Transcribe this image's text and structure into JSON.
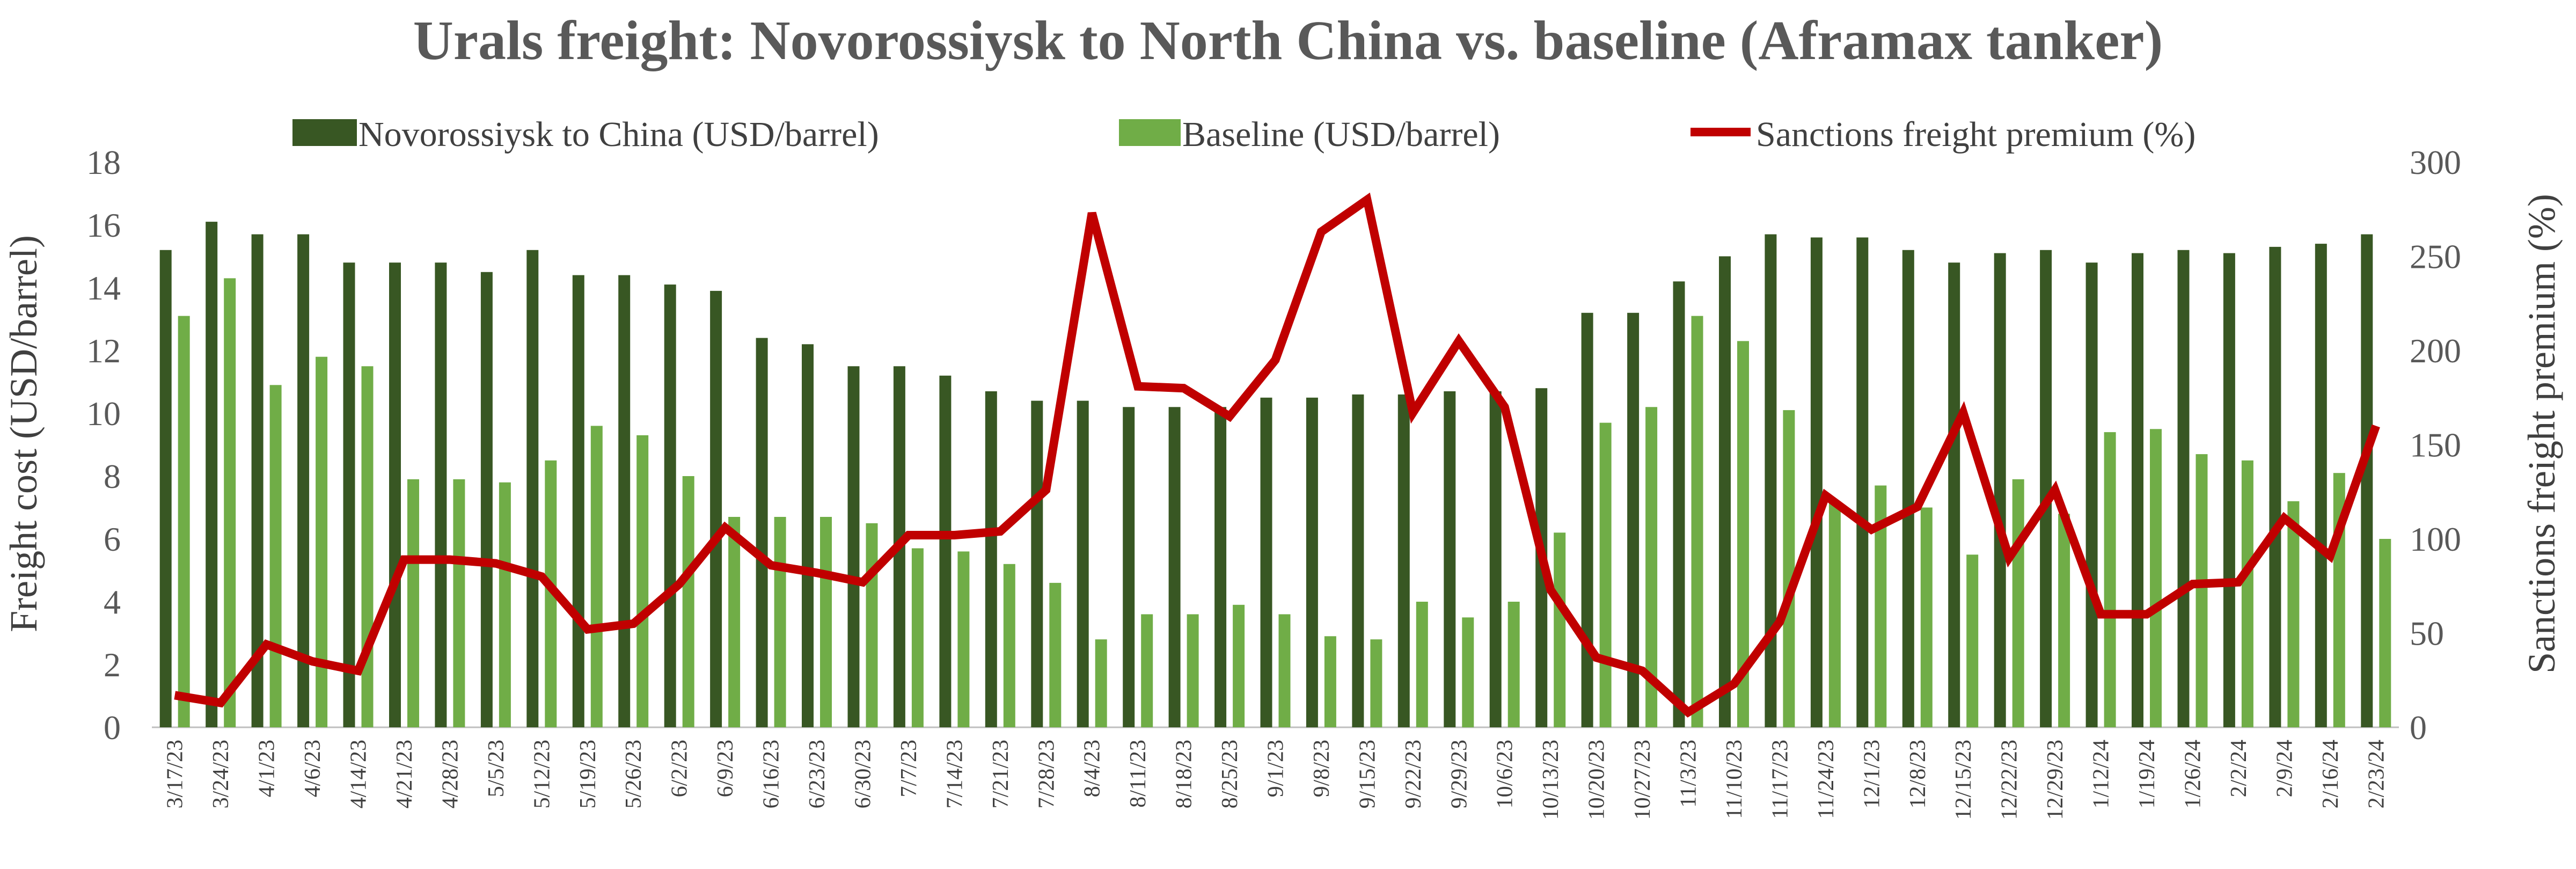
{
  "chart_data": {
    "type": "bar",
    "title": "Urals freight: Novorossiysk to North China vs. baseline (Aframax tanker)",
    "ylabel": "Freight cost (USD/barrel)",
    "y2label": "Sanctions freight premium (%)",
    "ylim": [
      0,
      18
    ],
    "yticks": [
      "0",
      "2",
      "4",
      "6",
      "8",
      "10",
      "12",
      "14",
      "16",
      "18"
    ],
    "y2lim": [
      0,
      300
    ],
    "y2ticks": [
      "0",
      "50",
      "100",
      "150",
      "200",
      "250",
      "300"
    ],
    "grid": false,
    "legend_position": "top",
    "categories": [
      "3/17/23",
      "3/24/23",
      "4/1/23",
      "4/6/23",
      "4/14/23",
      "4/21/23",
      "4/28/23",
      "5/5/23",
      "5/12/23",
      "5/19/23",
      "5/26/23",
      "6/2/23",
      "6/9/23",
      "6/16/23",
      "6/23/23",
      "6/30/23",
      "7/7/23",
      "7/14/23",
      "7/21/23",
      "7/28/23",
      "8/4/23",
      "8/11/23",
      "8/18/23",
      "8/25/23",
      "9/1/23",
      "9/8/23",
      "9/15/23",
      "9/22/23",
      "9/29/23",
      "10/6/23",
      "10/13/23",
      "10/20/23",
      "10/27/23",
      "11/3/23",
      "11/10/23",
      "11/17/23",
      "11/24/23",
      "12/1/23",
      "12/8/23",
      "12/15/23",
      "12/22/23",
      "12/29/23",
      "1/12/24",
      "1/19/24",
      "1/26/24",
      "2/2/24",
      "2/9/24",
      "2/16/24",
      "2/23/24"
    ],
    "series": [
      {
        "name": "Novorossiysk to China (USD/barrel)",
        "type": "bar",
        "axis": "left",
        "color": "#385723",
        "values": [
          15.2,
          16.1,
          15.7,
          15.7,
          14.8,
          14.8,
          14.8,
          14.5,
          15.2,
          14.4,
          14.4,
          14.1,
          13.9,
          12.4,
          12.2,
          11.5,
          11.5,
          11.2,
          10.7,
          10.4,
          10.4,
          10.2,
          10.2,
          10.2,
          10.5,
          10.5,
          10.6,
          10.6,
          10.7,
          10.7,
          10.8,
          13.2,
          13.2,
          14.2,
          15.0,
          15.7,
          15.6,
          15.6,
          15.2,
          14.8,
          15.1,
          15.2,
          14.8,
          15.1,
          15.2,
          15.1,
          15.3,
          15.4,
          15.7
        ]
      },
      {
        "name": "Baseline (USD/barrel)",
        "type": "bar",
        "axis": "left",
        "color": "#70AD47",
        "values": [
          13.1,
          14.3,
          10.9,
          11.8,
          11.5,
          7.9,
          7.9,
          7.8,
          8.5,
          9.6,
          9.3,
          8.0,
          6.7,
          6.7,
          6.7,
          6.5,
          5.7,
          5.6,
          5.2,
          4.6,
          2.8,
          3.6,
          3.6,
          3.9,
          3.6,
          2.9,
          2.8,
          4.0,
          3.5,
          4.0,
          6.2,
          9.7,
          10.2,
          13.1,
          12.3,
          10.1,
          7.2,
          7.7,
          7.0,
          5.5,
          7.9,
          6.8,
          9.4,
          9.5,
          8.7,
          8.5,
          7.2,
          8.1,
          6.0
        ]
      },
      {
        "name": "Sanctions freight premium (%)",
        "type": "line",
        "axis": "right",
        "color": "#C00000",
        "values": [
          17,
          13,
          44,
          35,
          30,
          89,
          89,
          87,
          80,
          52,
          55,
          76,
          106,
          86,
          82,
          77,
          102,
          102,
          104,
          126,
          273,
          181,
          180,
          165,
          195,
          263,
          280,
          167,
          205,
          170,
          73,
          37,
          30,
          8,
          23,
          56,
          123,
          105,
          117,
          167,
          90,
          126,
          60,
          60,
          76,
          77,
          111,
          91,
          160
        ]
      }
    ]
  }
}
